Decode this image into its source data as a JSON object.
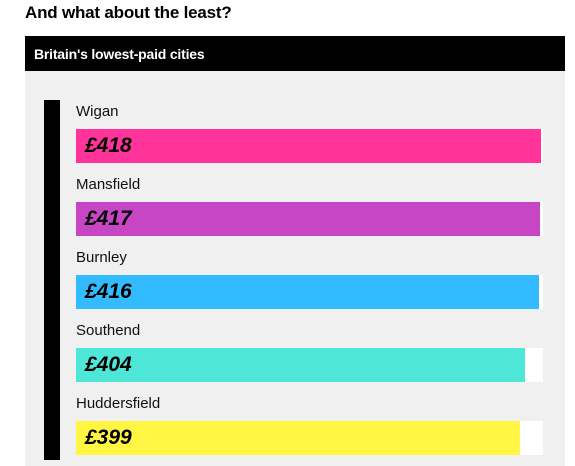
{
  "page": {
    "heading": "And what about the least?"
  },
  "chart_data": {
    "type": "bar",
    "orientation": "horizontal",
    "title": "Britain's lowest-paid cities",
    "categories": [
      "Wigan",
      "Mansfield",
      "Burnley",
      "Southend",
      "Huddersfield"
    ],
    "values": [
      418,
      417,
      416,
      404,
      399
    ],
    "value_labels": [
      "£418",
      "£417",
      "£416",
      "£404",
      "£399"
    ],
    "colors": [
      "#ff3399",
      "#c746c6",
      "#33bbff",
      "#4ee6d6",
      "#fff542"
    ],
    "xlim": [
      0,
      420
    ],
    "grid": false,
    "legend": "none"
  }
}
